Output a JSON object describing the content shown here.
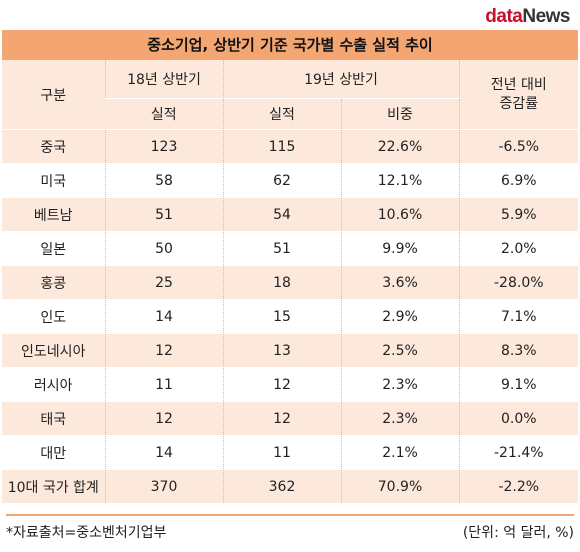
{
  "brand": {
    "part1": "data",
    "part2": "News"
  },
  "title": "중소기업, 상반기 기준 국가별 수출 실적 추이",
  "header": {
    "category": "구분",
    "h18": "18년 상반기",
    "h19": "19년 상반기",
    "change": "전년 대비 증감률",
    "sub18": "실적",
    "sub19a": "실적",
    "sub19b": "비중"
  },
  "rows": [
    {
      "country": "중국",
      "y18": "123",
      "y19": "115",
      "share": "22.6%",
      "change": "-6.5%"
    },
    {
      "country": "미국",
      "y18": "58",
      "y19": "62",
      "share": "12.1%",
      "change": "6.9%"
    },
    {
      "country": "베트남",
      "y18": "51",
      "y19": "54",
      "share": "10.6%",
      "change": "5.9%"
    },
    {
      "country": "일본",
      "y18": "50",
      "y19": "51",
      "share": "9.9%",
      "change": "2.0%"
    },
    {
      "country": "홍콩",
      "y18": "25",
      "y19": "18",
      "share": "3.6%",
      "change": "-28.0%"
    },
    {
      "country": "인도",
      "y18": "14",
      "y19": "15",
      "share": "2.9%",
      "change": "7.1%"
    },
    {
      "country": "인도네시아",
      "y18": "12",
      "y19": "13",
      "share": "2.5%",
      "change": "8.3%"
    },
    {
      "country": "러시아",
      "y18": "11",
      "y19": "12",
      "share": "2.3%",
      "change": "9.1%"
    },
    {
      "country": "태국",
      "y18": "12",
      "y19": "12",
      "share": "2.3%",
      "change": "0.0%"
    },
    {
      "country": "대만",
      "y18": "14",
      "y19": "11",
      "share": "2.1%",
      "change": "-21.4%"
    },
    {
      "country": "10대 국가 합계",
      "y18": "370",
      "y19": "362",
      "share": "70.9%",
      "change": "-2.2%"
    }
  ],
  "footer": {
    "source": "*자료출처=중소벤처기업부",
    "unit": "(단위: 억 달러, %)"
  },
  "colors": {
    "header_bar": "#f4a672",
    "row_tint": "#fde9dc",
    "brand_red": "#c8102e"
  }
}
